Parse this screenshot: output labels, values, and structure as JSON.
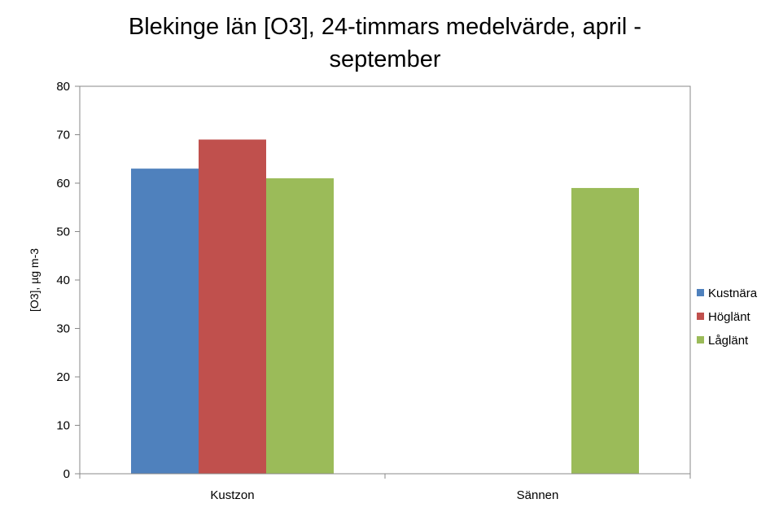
{
  "chart_data": {
    "type": "bar",
    "title_lines": [
      "Blekinge län [O3], 24-timmars medelvärde, april -",
      "september"
    ],
    "ylabel": "[O3], µg m-3",
    "xlabel": "",
    "categories": [
      "Kustzon",
      "Sännen"
    ],
    "ylim": [
      0,
      80
    ],
    "yticks": [
      0,
      10,
      20,
      30,
      40,
      50,
      60,
      70,
      80
    ],
    "series": [
      {
        "name": "Kustnära",
        "color": "#4f81bd",
        "values": [
          63,
          null
        ]
      },
      {
        "name": "Höglänt",
        "color": "#c0504d",
        "values": [
          69,
          null
        ]
      },
      {
        "name": "Låglänt",
        "color": "#9bbb59",
        "values": [
          61,
          59
        ]
      }
    ],
    "legend_position": "right",
    "grid": false
  }
}
